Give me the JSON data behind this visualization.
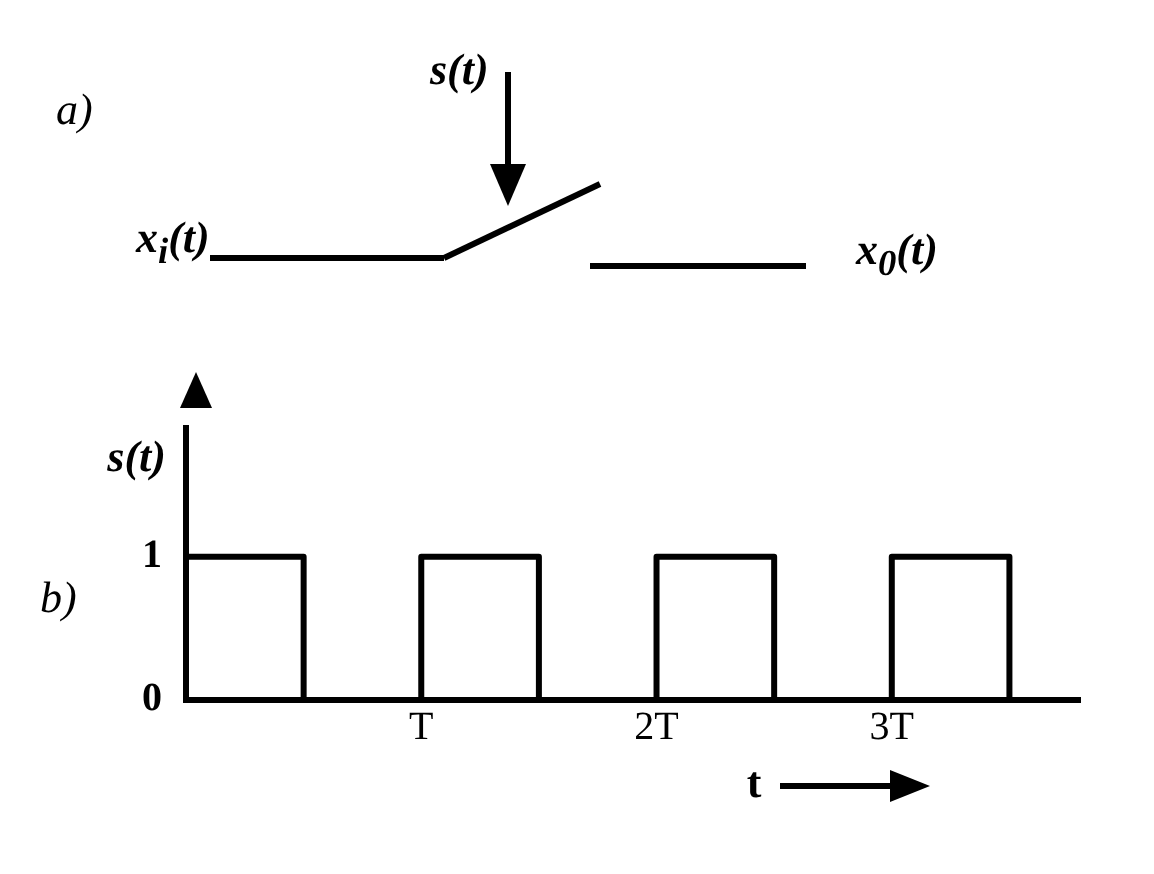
{
  "chart_data": {
    "type": "step",
    "xlabel": "t",
    "ylabel": "s(t)",
    "annotations": [
      "a)",
      "s(t)",
      "x$_{i}$(t)",
      "x$_{0}$(t)",
      "b)"
    ],
    "x": [
      0,
      0.5,
      1,
      1.5,
      2,
      2.5,
      3,
      3.5
    ],
    "series": [
      {
        "color": "#000000",
        "values": [
          1,
          0,
          1,
          0,
          1,
          0,
          1,
          0
        ]
      }
    ],
    "xlim": [
      0,
      3.8
    ],
    "xticks": [
      {
        "value": 1,
        "label": "T"
      },
      {
        "value": 2,
        "label": "2T"
      },
      {
        "value": 3,
        "label": "3T"
      }
    ],
    "ylim": [
      0,
      1.9
    ],
    "yticks": [
      0,
      1
    ],
    "grid": false,
    "legend": false,
    "marker": "none",
    "line_style": "solid"
  }
}
